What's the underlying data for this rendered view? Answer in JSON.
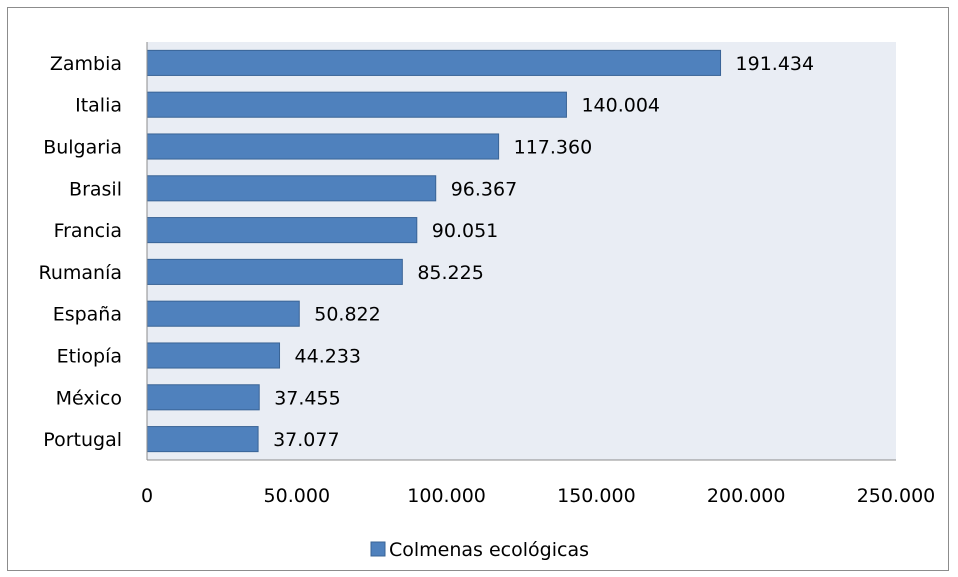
{
  "chart_data": {
    "type": "bar",
    "orientation": "horizontal",
    "categories": [
      "Zambia",
      "Italia",
      "Bulgaria",
      "Brasil",
      "Francia",
      "Rumanía",
      "España",
      "Etiopía",
      "México",
      "Portugal"
    ],
    "series": [
      {
        "name": "Colmenas ecológicas",
        "values": [
          191434,
          140004,
          117360,
          96367,
          90051,
          85225,
          50822,
          44233,
          37455,
          37077
        ],
        "labels": [
          "191.434",
          "140.004",
          "117.360",
          "96.367",
          "90.051",
          "85.225",
          "50.822",
          "44.233",
          "37.455",
          "37.077"
        ]
      }
    ],
    "x_ticks": [
      0,
      50000,
      100000,
      150000,
      200000,
      250000
    ],
    "x_tick_labels": [
      "0",
      "50.000",
      "100.000",
      "150.000",
      "200.000",
      "250.000"
    ],
    "xlim": [
      0,
      250000
    ],
    "title": "",
    "xlabel": "",
    "ylabel": "",
    "grid": false,
    "legend_position": "bottom",
    "colors": {
      "bar_fill": "#4f81bd",
      "bar_stroke": "#3a6496",
      "plot_background": "#e9edf4",
      "axis": "#8c8c8c"
    }
  }
}
